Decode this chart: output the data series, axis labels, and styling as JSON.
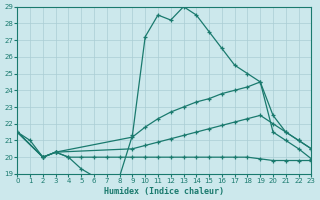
{
  "xlabel": "Humidex (Indice chaleur)",
  "xlim": [
    0,
    23
  ],
  "ylim": [
    19,
    29
  ],
  "xticks": [
    0,
    1,
    2,
    3,
    4,
    5,
    6,
    7,
    8,
    9,
    10,
    11,
    12,
    13,
    14,
    15,
    16,
    17,
    18,
    19,
    20,
    21,
    22,
    23
  ],
  "yticks": [
    19,
    20,
    21,
    22,
    23,
    24,
    25,
    26,
    27,
    28,
    29
  ],
  "bg_color": "#cce8ec",
  "line_color": "#1a7a6e",
  "grid_color": "#aacdd4",
  "line1_x": [
    0,
    1,
    2,
    3,
    4,
    5,
    6,
    7,
    8,
    9,
    10,
    11,
    12,
    13,
    14,
    15,
    16,
    17,
    18,
    19,
    20,
    21,
    22,
    23
  ],
  "line1_y": [
    21.5,
    21.0,
    20.0,
    20.3,
    20.0,
    19.3,
    18.85,
    18.85,
    18.85,
    21.3,
    27.2,
    28.5,
    28.2,
    29.0,
    28.5,
    27.5,
    26.5,
    25.5,
    25.0,
    24.5,
    21.5,
    21.0,
    20.5,
    19.9
  ],
  "line2_x": [
    0,
    2,
    3,
    9,
    10,
    11,
    12,
    13,
    14,
    15,
    16,
    17,
    18,
    19,
    20,
    21,
    22,
    23
  ],
  "line2_y": [
    21.5,
    20.0,
    20.3,
    21.2,
    21.8,
    22.3,
    22.7,
    23.0,
    23.3,
    23.5,
    23.8,
    24.0,
    24.2,
    24.5,
    22.5,
    21.5,
    21.0,
    20.5
  ],
  "line3_x": [
    0,
    2,
    3,
    9,
    10,
    11,
    12,
    13,
    14,
    15,
    16,
    17,
    18,
    19,
    20,
    21,
    22,
    23
  ],
  "line3_y": [
    21.5,
    20.0,
    20.3,
    20.5,
    20.7,
    20.9,
    21.1,
    21.3,
    21.5,
    21.7,
    21.9,
    22.1,
    22.3,
    22.5,
    22.0,
    21.5,
    21.0,
    20.5
  ],
  "line4_x": [
    0,
    2,
    3,
    4,
    5,
    6,
    7,
    8,
    9,
    10,
    11,
    12,
    13,
    14,
    15,
    16,
    17,
    18,
    19,
    20,
    21,
    22,
    23
  ],
  "line4_y": [
    21.5,
    20.0,
    20.3,
    20.0,
    20.0,
    20.0,
    20.0,
    20.0,
    20.0,
    20.0,
    20.0,
    20.0,
    20.0,
    20.0,
    20.0,
    20.0,
    20.0,
    20.0,
    19.9,
    19.8,
    19.8,
    19.8,
    19.8
  ]
}
